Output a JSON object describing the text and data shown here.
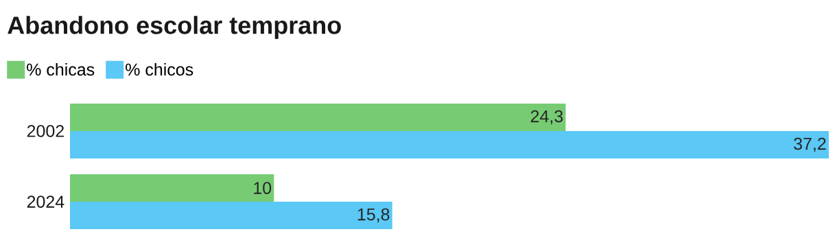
{
  "chart_data": {
    "type": "bar",
    "orientation": "horizontal",
    "title": "Abandono escolar temprano",
    "categories": [
      "2002",
      "2024"
    ],
    "series": [
      {
        "name": "% chicas",
        "color": "#77cc73",
        "values": [
          24.3,
          10
        ],
        "value_labels": [
          "24,3",
          "10"
        ]
      },
      {
        "name": "% chicos",
        "color": "#5bc8f5",
        "values": [
          37.2,
          15.8
        ],
        "value_labels": [
          "37,2",
          "15,8"
        ]
      }
    ],
    "xlim": [
      0,
      37.2
    ],
    "tick_labels": "y",
    "grid": false,
    "legend": "top left"
  }
}
